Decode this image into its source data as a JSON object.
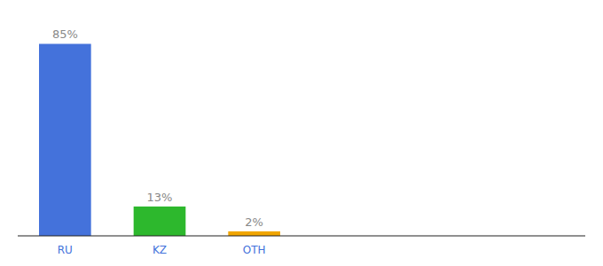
{
  "chart_data": {
    "type": "bar",
    "categories": [
      "RU",
      "KZ",
      "OTH"
    ],
    "values": [
      85,
      13,
      2
    ],
    "value_labels": [
      "85%",
      "13%",
      "2%"
    ],
    "colors": [
      "#4472db",
      "#2db82d",
      "#f0a500"
    ],
    "ylim": [
      0,
      95
    ],
    "data_labels": true,
    "tick_labels": "x",
    "grid": false
  }
}
